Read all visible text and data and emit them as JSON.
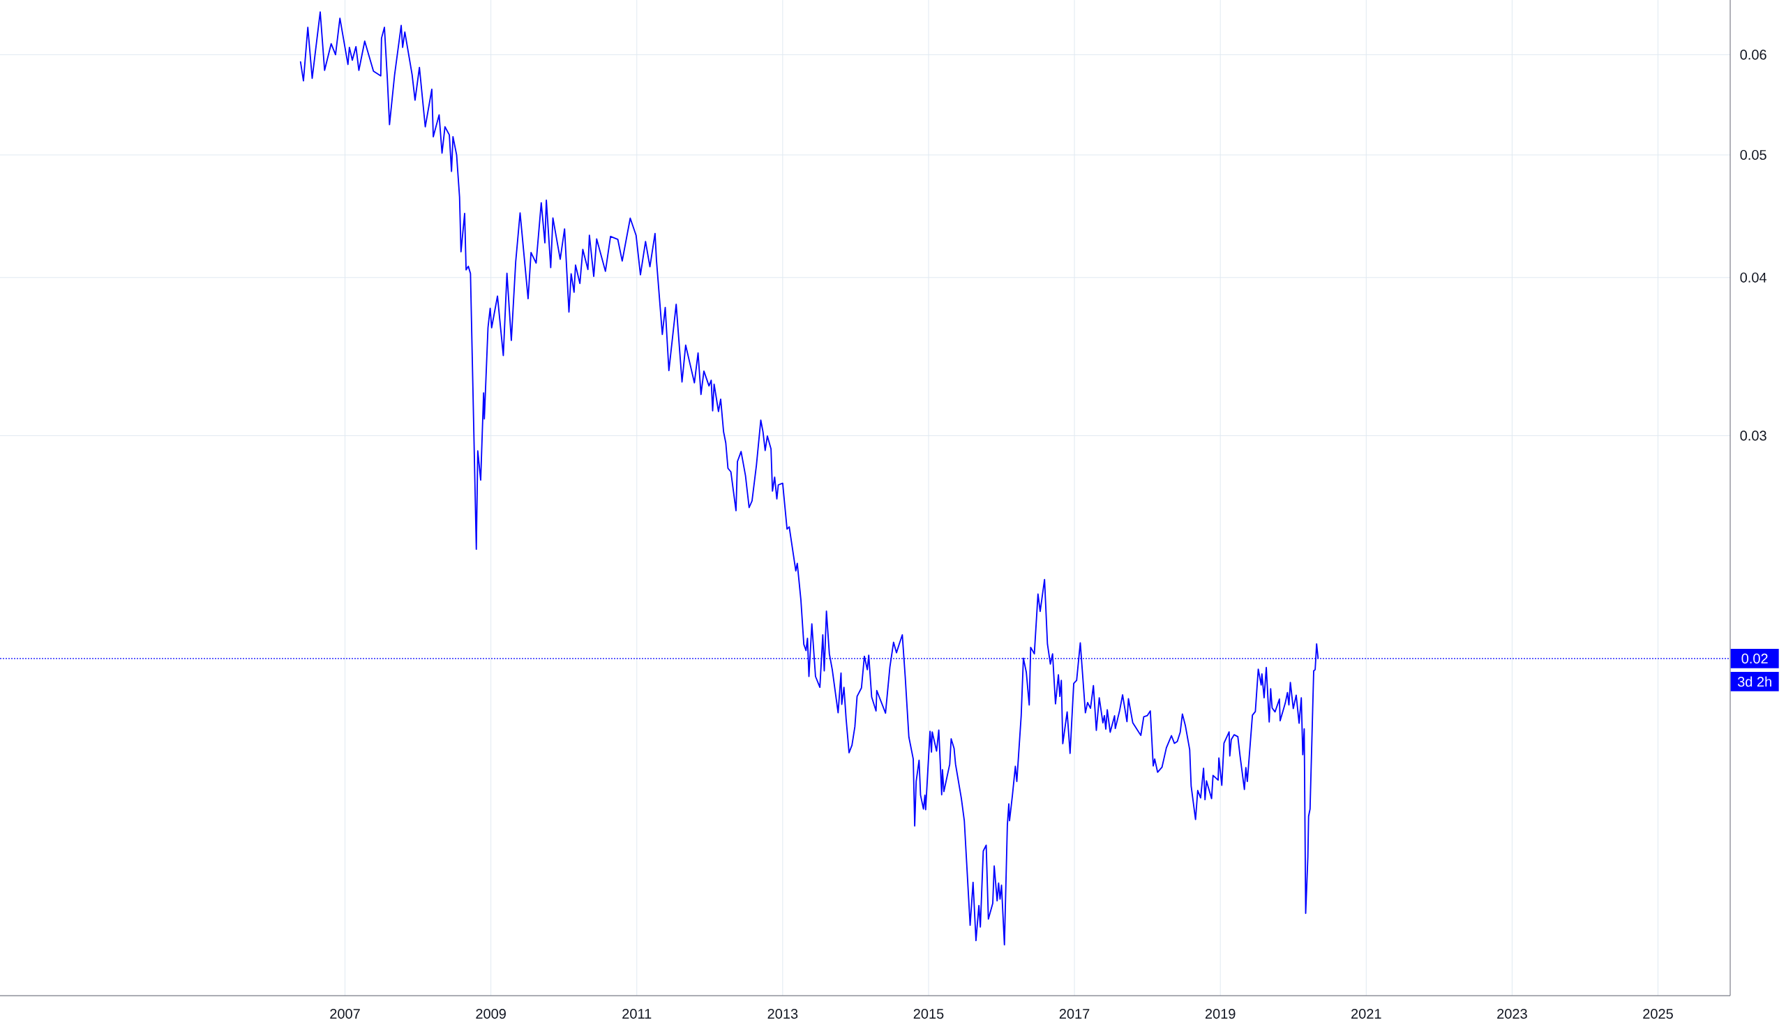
{
  "chart_data": {
    "type": "line",
    "x": [
      2006.39,
      2006.43,
      2006.49,
      2006.55,
      2006.66,
      2006.72,
      2006.81,
      2006.87,
      2006.93,
      2007.04,
      2007.06,
      2007.1,
      2007.15,
      2007.19,
      2007.27,
      2007.39,
      2007.49,
      2007.5,
      2007.54,
      2007.58,
      2007.61,
      2007.68,
      2007.77,
      2007.79,
      2007.82,
      2007.92,
      2007.96,
      2008.02,
      2008.1,
      2008.19,
      2008.21,
      2008.29,
      2008.33,
      2008.37,
      2008.43,
      2008.46,
      2008.48,
      2008.53,
      2008.57,
      2008.59,
      2008.64,
      2008.66,
      2008.69,
      2008.72,
      2008.8,
      2008.82,
      2008.86,
      2008.9,
      2008.91,
      2008.96,
      2008.99,
      2009.01,
      2009.09,
      2009.17,
      2009.22,
      2009.28,
      2009.34,
      2009.4,
      2009.51,
      2009.55,
      2009.62,
      2009.69,
      2009.74,
      2009.76,
      2009.82,
      2009.85,
      2009.95,
      2010.01,
      2010.07,
      2010.1,
      2010.14,
      2010.16,
      2010.22,
      2010.26,
      2010.33,
      2010.35,
      2010.41,
      2010.45,
      2010.57,
      2010.64,
      2010.74,
      2010.8,
      2010.91,
      2010.99,
      2011.05,
      2011.12,
      2011.18,
      2011.25,
      2011.27,
      2011.35,
      2011.39,
      2011.44,
      2011.54,
      2011.62,
      2011.67,
      2011.79,
      2011.84,
      2011.88,
      2011.92,
      2011.99,
      2012.02,
      2012.04,
      2012.06,
      2012.12,
      2012.15,
      2012.19,
      2012.22,
      2012.25,
      2012.29,
      2012.36,
      2012.38,
      2012.43,
      2012.49,
      2012.54,
      2012.58,
      2012.64,
      2012.7,
      2012.73,
      2012.76,
      2012.79,
      2012.84,
      2012.86,
      2012.89,
      2012.92,
      2012.94,
      2013.0,
      2013.06,
      2013.09,
      2013.18,
      2013.2,
      2013.25,
      2013.29,
      2013.32,
      2013.34,
      2013.36,
      2013.4,
      2013.45,
      2013.51,
      2013.55,
      2013.57,
      2013.6,
      2013.64,
      2013.68,
      2013.76,
      2013.8,
      2013.81,
      2013.84,
      2013.87,
      2013.91,
      2013.95,
      2013.99,
      2014.02,
      2014.08,
      2014.12,
      2014.16,
      2014.18,
      2014.22,
      2014.28,
      2014.29,
      2014.41,
      2014.47,
      2014.52,
      2014.56,
      2014.6,
      2014.64,
      2014.68,
      2014.73,
      2014.79,
      2014.81,
      2014.83,
      2014.87,
      2014.89,
      2014.93,
      2014.95,
      2014.96,
      2015.02,
      2015.04,
      2015.05,
      2015.11,
      2015.14,
      2015.18,
      2015.19,
      2015.21,
      2015.29,
      2015.31,
      2015.35,
      2015.37,
      2015.45,
      2015.49,
      2015.57,
      2015.61,
      2015.65,
      2015.69,
      2015.71,
      2015.75,
      2015.79,
      2015.82,
      2015.88,
      2015.9,
      2015.94,
      2015.96,
      2015.98,
      2016.0,
      2016.04,
      2016.08,
      2016.1,
      2016.11,
      2016.15,
      2016.19,
      2016.21,
      2016.27,
      2016.3,
      2016.34,
      2016.38,
      2016.4,
      2016.45,
      2016.5,
      2016.53,
      2016.59,
      2016.63,
      2016.67,
      2016.7,
      2016.74,
      2016.78,
      2016.8,
      2016.82,
      2016.84,
      2016.9,
      2016.94,
      2016.99,
      2017.03,
      2017.08,
      2017.15,
      2017.18,
      2017.22,
      2017.26,
      2017.3,
      2017.34,
      2017.39,
      2017.41,
      2017.43,
      2017.45,
      2017.49,
      2017.55,
      2017.56,
      2017.62,
      2017.66,
      2017.72,
      2017.74,
      2017.8,
      2017.91,
      2017.95,
      2018.0,
      2018.04,
      2018.08,
      2018.1,
      2018.14,
      2018.2,
      2018.26,
      2018.33,
      2018.37,
      2018.41,
      2018.45,
      2018.48,
      2018.52,
      2018.58,
      2018.6,
      2018.66,
      2018.69,
      2018.73,
      2018.77,
      2018.79,
      2018.81,
      2018.88,
      2018.9,
      2018.97,
      2018.98,
      2019.02,
      2019.05,
      2019.12,
      2019.13,
      2019.15,
      2019.19,
      2019.24,
      2019.27,
      2019.33,
      2019.35,
      2019.37,
      2019.44,
      2019.48,
      2019.52,
      2019.56,
      2019.57,
      2019.6,
      2019.63,
      2019.67,
      2019.69,
      2019.71,
      2019.75,
      2019.81,
      2019.82,
      2019.89,
      2019.92,
      2019.94,
      2019.96,
      2020.0,
      2020.04,
      2020.08,
      2020.11,
      2020.13,
      2020.15,
      2020.17,
      2020.2,
      2020.21,
      2020.23,
      2020.28,
      2020.3,
      2020.32,
      2020.34
    ],
    "series": [
      {
        "color": "#0000ff",
        "values": [
          0.05922,
          0.05721,
          0.06307,
          0.05748,
          0.06485,
          0.05832,
          0.06121,
          0.06,
          0.06412,
          0.05894,
          0.06081,
          0.05941,
          0.06089,
          0.05832,
          0.0615,
          0.05824,
          0.05774,
          0.06182,
          0.06307,
          0.05748,
          0.05283,
          0.05786,
          0.06328,
          0.06081,
          0.06253,
          0.05786,
          0.05523,
          0.05863,
          0.05262,
          0.05634,
          0.05168,
          0.05378,
          0.05016,
          0.05262,
          0.05185,
          0.04852,
          0.05168,
          0.04999,
          0.04632,
          0.04192,
          0.04495,
          0.04056,
          0.04083,
          0.0403,
          0.0244,
          0.02918,
          0.02767,
          0.03243,
          0.03093,
          0.03651,
          0.03783,
          0.03651,
          0.03868,
          0.03471,
          0.04031,
          0.03568,
          0.04116,
          0.04499,
          0.0385,
          0.04186,
          0.04107,
          0.04583,
          0.04261,
          0.04604,
          0.04073,
          0.04458,
          0.04135,
          0.0437,
          0.03757,
          0.04028,
          0.03895,
          0.04092,
          0.03958,
          0.0421,
          0.04059,
          0.0432,
          0.04008,
          0.04291,
          0.04046,
          0.04311,
          0.04287,
          0.04122,
          0.04456,
          0.0432,
          0.0402,
          0.04271,
          0.04079,
          0.04334,
          0.04126,
          0.03607,
          0.03789,
          0.03377,
          0.0381,
          0.03308,
          0.03537,
          0.03303,
          0.03487,
          0.03234,
          0.03374,
          0.03284,
          0.03318,
          0.03139,
          0.03295,
          0.03135,
          0.03206,
          0.03021,
          0.02961,
          0.02827,
          0.02809,
          0.02617,
          0.02862,
          0.02915,
          0.0279,
          0.02632,
          0.02664,
          0.02843,
          0.03086,
          0.03021,
          0.0292,
          0.02998,
          0.02928,
          0.02712,
          0.02782,
          0.02674,
          0.02743,
          0.02751,
          0.02531,
          0.02541,
          0.02345,
          0.02378,
          0.02224,
          0.02052,
          0.02029,
          0.02075,
          0.01936,
          0.0213,
          0.01936,
          0.01898,
          0.02088,
          0.01956,
          0.0218,
          0.02017,
          0.0196,
          0.01812,
          0.01948,
          0.0184,
          0.01898,
          0.01791,
          0.01685,
          0.01708,
          0.01767,
          0.01867,
          0.01896,
          0.02008,
          0.0196,
          0.02012,
          0.01865,
          0.01818,
          0.01887,
          0.01811,
          0.0197,
          0.0206,
          0.02021,
          0.02055,
          0.02088,
          0.01935,
          0.01734,
          0.01666,
          0.01475,
          0.01599,
          0.01662,
          0.0156,
          0.01521,
          0.0156,
          0.01519,
          0.01752,
          0.01687,
          0.0175,
          0.0169,
          0.01756,
          0.01561,
          0.01634,
          0.0157,
          0.0165,
          0.01728,
          0.01698,
          0.0165,
          0.0155,
          0.01489,
          0.01231,
          0.01331,
          0.01197,
          0.01276,
          0.01227,
          0.01409,
          0.01424,
          0.01245,
          0.01281,
          0.01371,
          0.01287,
          0.01329,
          0.01291,
          0.01324,
          0.01188,
          0.01476,
          0.01535,
          0.01489,
          0.0156,
          0.01644,
          0.01599,
          0.01803,
          0.02001,
          0.01951,
          0.01838,
          0.02041,
          0.02017,
          0.02249,
          0.02179,
          0.02309,
          0.02053,
          0.0198,
          0.02017,
          0.01842,
          0.01942,
          0.01867,
          0.01922,
          0.01713,
          0.01815,
          0.01683,
          0.01911,
          0.01922,
          0.02058,
          0.01812,
          0.01846,
          0.01827,
          0.01904,
          0.01755,
          0.01862,
          0.01779,
          0.01803,
          0.01759,
          0.01822,
          0.01749,
          0.01802,
          0.01761,
          0.0182,
          0.01872,
          0.01783,
          0.01859,
          0.01779,
          0.01739,
          0.01799,
          0.01803,
          0.01818,
          0.01645,
          0.01666,
          0.01626,
          0.01641,
          0.017,
          0.01738,
          0.01714,
          0.0172,
          0.01749,
          0.01808,
          0.01771,
          0.01694,
          0.01586,
          0.01492,
          0.01573,
          0.01552,
          0.01638,
          0.01547,
          0.01601,
          0.0155,
          0.01617,
          0.01603,
          0.01669,
          0.01588,
          0.01715,
          0.0175,
          0.01675,
          0.01726,
          0.01741,
          0.01735,
          0.01676,
          0.01576,
          0.0164,
          0.01599,
          0.01804,
          0.01816,
          0.01962,
          0.01906,
          0.01945,
          0.01862,
          0.01968,
          0.01782,
          0.01893,
          0.01828,
          0.01815,
          0.01858,
          0.01786,
          0.01844,
          0.0188,
          0.01838,
          0.01915,
          0.01826,
          0.01871,
          0.01778,
          0.01862,
          0.01679,
          0.0176,
          0.01258,
          0.01394,
          0.01501,
          0.01521,
          0.01956,
          0.0196,
          0.02054,
          0.02001
        ]
      }
    ],
    "log": "y",
    "xlim": [
      2002.27,
      2025.99
    ],
    "ylim": [
      0.01083,
      0.06628
    ],
    "xticks": [
      2007,
      2009,
      2011,
      2013,
      2015,
      2017,
      2019,
      2021,
      2023,
      2025
    ],
    "yticks": [
      0.03,
      0.04,
      0.05,
      0.06
    ],
    "grid": true,
    "ref_lines": [
      {
        "axis": "y",
        "value": 0.02,
        "label": "0.02",
        "color": "#0000ff",
        "line_style": "dotted"
      }
    ],
    "annotations": [
      "3d 2h"
    ]
  }
}
